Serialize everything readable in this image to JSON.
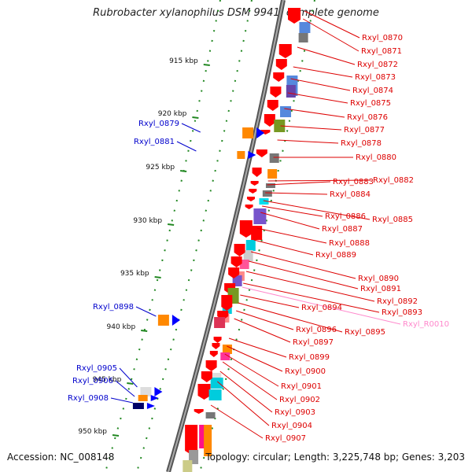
{
  "title": "Rubrobacter xylanophilus DSM 9941, complete genome",
  "accession": "Accession: NC_008148",
  "topology": "Topology: circular; Length: 3,225,748 bp; Genes: 3,203",
  "ticks": [
    "915 kbp",
    "920 kbp",
    "925 kbp",
    "930 kbp",
    "935 kbp",
    "940 kbp",
    "945 kbp",
    "950 kbp"
  ],
  "genes_left": [
    "Rxyl_0879",
    "Rxyl_0881",
    "Rxyl_0898",
    "Rxyl_0905",
    "Rxyl_0906",
    "Rxyl_0908"
  ],
  "genes_right": [
    "Rxyl_0870",
    "Rxyl_0871",
    "Rxyl_0872",
    "Rxyl_0873",
    "Rxyl_0874",
    "Rxyl_0875",
    "Rxyl_0876",
    "Rxyl_0877",
    "Rxyl_0878",
    "Rxyl_0880",
    "Rxyl_0882",
    "Rxyl_0883",
    "Rxyl_0884",
    "Rxyl_0885",
    "Rxyl_0886",
    "Rxyl_0887",
    "Rxyl_0888",
    "Rxyl_0889",
    "Rxyl_0890",
    "Rxyl_0891",
    "Rxyl_0892",
    "Rxyl_0893",
    "Rxyl_R0010",
    "Rxyl_0894",
    "Rxyl_0895",
    "Rxyl_0896",
    "Rxyl_0897",
    "Rxyl_0899",
    "Rxyl_0900",
    "Rxyl_0901",
    "Rxyl_0902",
    "Rxyl_0903",
    "Rxyl_0904",
    "Rxyl_0907"
  ],
  "colors": {
    "left_label": "#0000cc",
    "right_label": "#dd0000",
    "rna_label": "#ff88cc",
    "backbone": "#777777",
    "tick": "#228822"
  }
}
